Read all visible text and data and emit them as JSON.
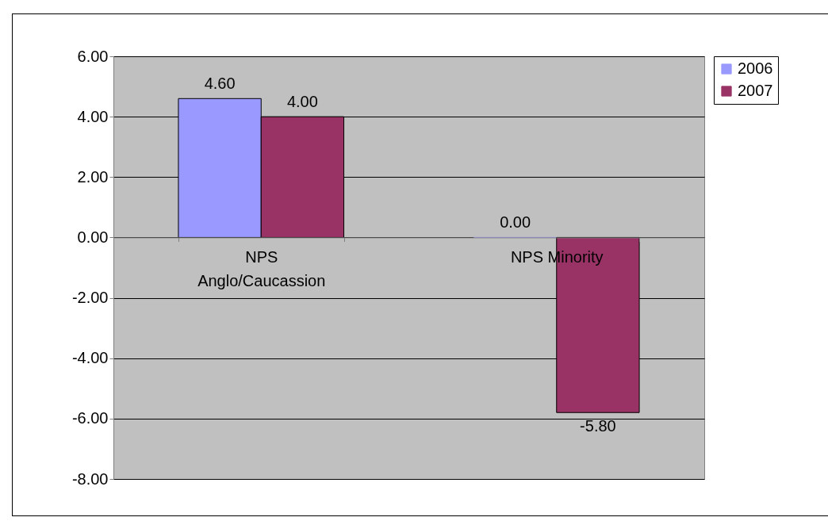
{
  "chart_data": {
    "type": "bar",
    "categories": [
      "NPS Anglo/Caucassion",
      "NPS Minority"
    ],
    "series": [
      {
        "name": "2006",
        "color": "#9999ff",
        "values": [
          4.6,
          0
        ],
        "value_labels": [
          "4.60",
          "0.00"
        ]
      },
      {
        "name": "2007",
        "color": "#993366",
        "values": [
          4,
          -5.8
        ],
        "value_labels": [
          "4.00",
          "-5.80"
        ]
      }
    ],
    "ylim": [
      -8,
      6
    ],
    "yticks": [
      {
        "value": -8,
        "label": "-8.00"
      },
      {
        "value": -6,
        "label": "-6.00"
      },
      {
        "value": -4,
        "label": "-4.00"
      },
      {
        "value": -2,
        "label": "-2.00"
      },
      {
        "value": 0,
        "label": "0.00"
      },
      {
        "value": 2,
        "label": "2.00"
      },
      {
        "value": 4,
        "label": "4.00"
      },
      {
        "value": 6,
        "label": "6.00"
      }
    ],
    "grid": "y",
    "legend": "right"
  }
}
